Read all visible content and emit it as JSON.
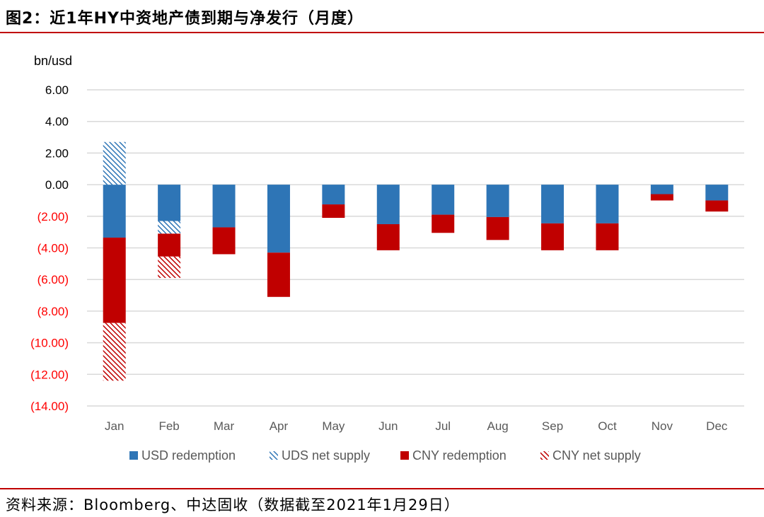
{
  "title": "图2：近1年HY中资地产债到期与净发行（月度）",
  "source": "资料来源：Bloomberg、中达固收（数据截至2021年1月29日）",
  "colors": {
    "usd": "#2e75b6",
    "cny": "#c00000",
    "grid": "#d9d9d9",
    "negLabel": "#ff0000",
    "rule": "#c00000"
  },
  "chart_data": {
    "type": "bar",
    "stacked": true,
    "ylabel": "bn/usd",
    "ylim": [
      -14,
      6
    ],
    "yticks": [
      {
        "value": 6,
        "label": "6.00"
      },
      {
        "value": 4,
        "label": "4.00"
      },
      {
        "value": 2,
        "label": "2.00"
      },
      {
        "value": 0,
        "label": "0.00"
      },
      {
        "value": -2,
        "label": "(2.00)"
      },
      {
        "value": -4,
        "label": "(4.00)"
      },
      {
        "value": -6,
        "label": "(6.00)"
      },
      {
        "value": -8,
        "label": "(8.00)"
      },
      {
        "value": -10,
        "label": "(10.00)"
      },
      {
        "value": -12,
        "label": "(12.00)"
      },
      {
        "value": -14,
        "label": "(14.00)"
      }
    ],
    "categories": [
      "Jan",
      "Feb",
      "Mar",
      "Apr",
      "May",
      "Jun",
      "Jul",
      "Aug",
      "Sep",
      "Oct",
      "Nov",
      "Dec"
    ],
    "series": [
      {
        "name": "USD redemption",
        "key": "usd_red",
        "values": [
          -3.35,
          -2.3,
          -2.7,
          -4.3,
          -1.25,
          -2.5,
          -1.9,
          -2.05,
          -2.45,
          -2.45,
          -0.6,
          -1.0
        ]
      },
      {
        "name": "UDS net supply",
        "key": "usd_net",
        "values": [
          2.7,
          -0.8,
          0,
          0,
          0,
          0,
          0,
          0,
          0,
          0,
          0,
          0
        ]
      },
      {
        "name": "CNY redemption",
        "key": "cny_red",
        "values": [
          -5.4,
          -1.45,
          -1.7,
          -2.8,
          -0.85,
          -1.65,
          -1.15,
          -1.45,
          -1.7,
          -1.7,
          -0.4,
          -0.7
        ]
      },
      {
        "name": "CNY net supply",
        "key": "cny_net",
        "values": [
          -3.65,
          -1.35,
          0,
          0,
          0,
          0,
          0,
          0,
          0,
          0,
          0,
          0
        ]
      }
    ],
    "legend": "bottom"
  }
}
